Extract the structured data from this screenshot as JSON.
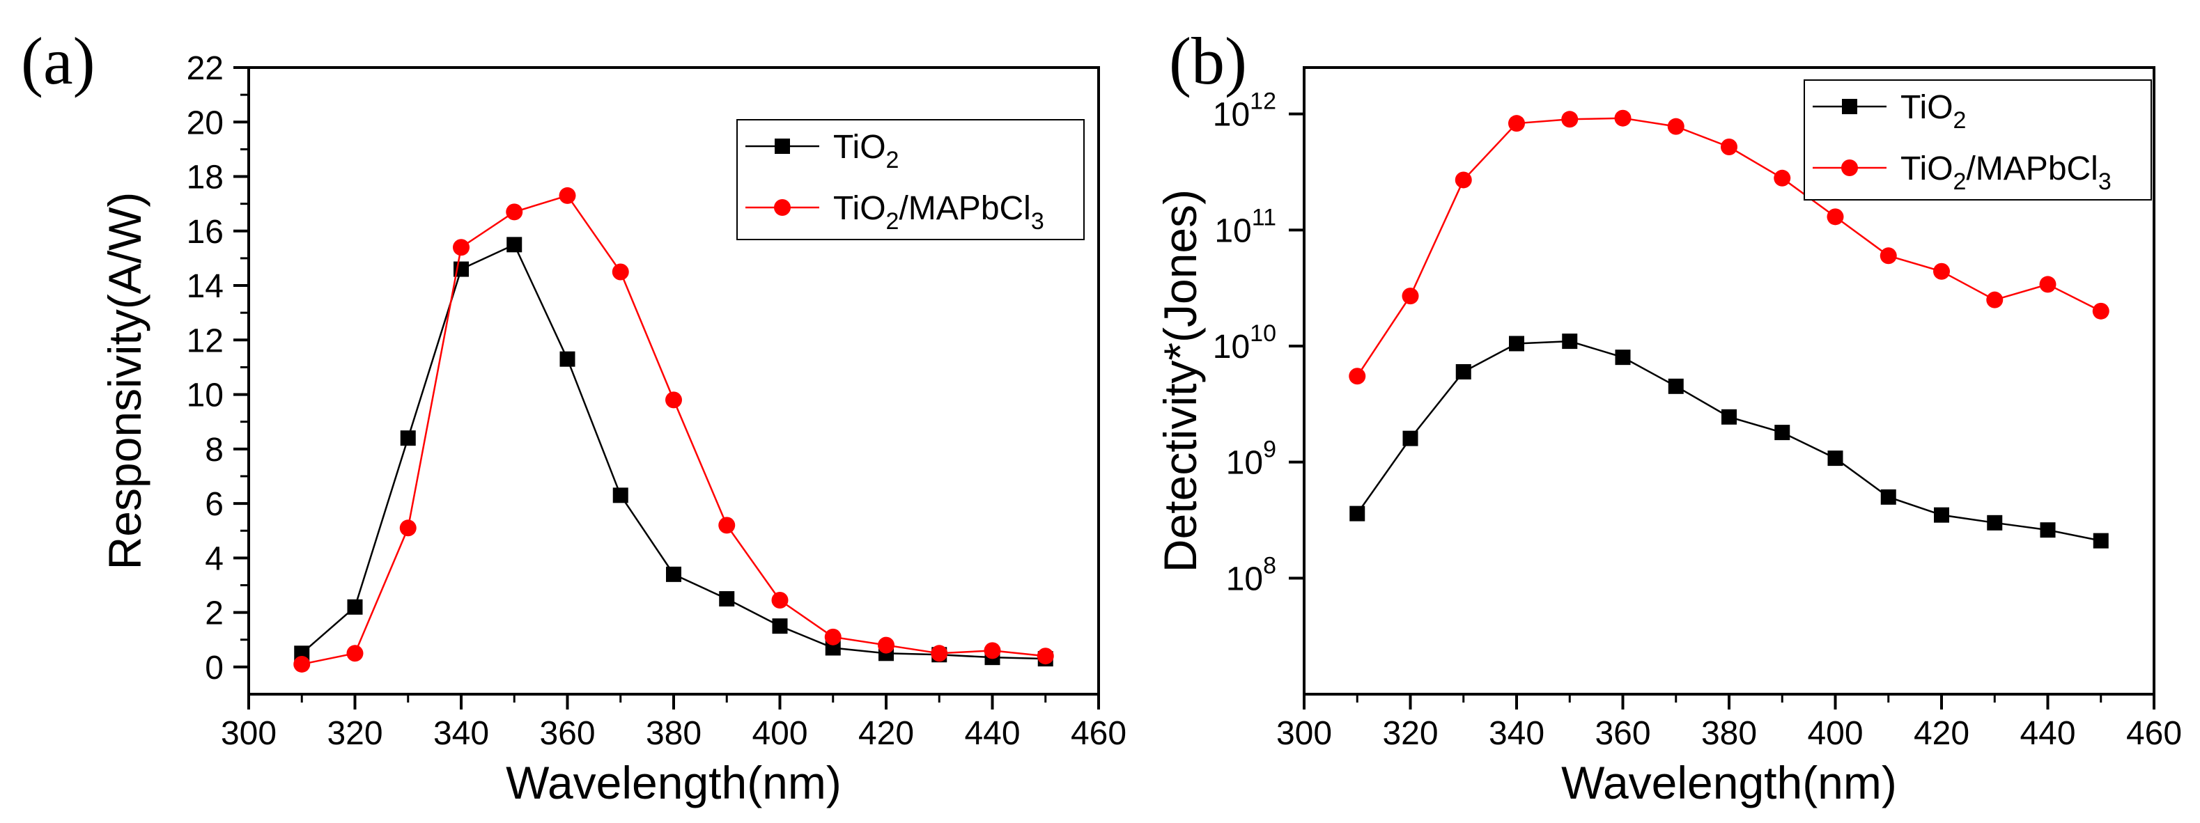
{
  "colors": {
    "tio2": "#000000",
    "mapbcl": "#ff0000",
    "axis": "#000000"
  },
  "chart_data": [
    {
      "type": "line",
      "panel": "(a)",
      "xlabel": "Wavelength(nm)",
      "ylabel": "Responsivity(A/W)",
      "xlim": [
        300,
        460
      ],
      "ylim": [
        -1,
        22
      ],
      "yscale": "linear",
      "xticks": [
        300,
        320,
        340,
        360,
        380,
        400,
        420,
        440,
        460
      ],
      "xtick_labels": [
        "300",
        "320",
        "340",
        "360",
        "380",
        "400",
        "420",
        "440",
        "460"
      ],
      "yticks": [
        0,
        2,
        4,
        6,
        8,
        10,
        12,
        14,
        16,
        18,
        20,
        22
      ],
      "ytick_labels": [
        "0",
        "2",
        "4",
        "6",
        "8",
        "10",
        "12",
        "14",
        "16",
        "18",
        "20",
        "22"
      ],
      "legend_position": "top-right",
      "x": [
        310,
        320,
        330,
        340,
        350,
        360,
        370,
        380,
        390,
        400,
        410,
        420,
        430,
        440,
        450
      ],
      "series": [
        {
          "name": "TiO2",
          "label_main": "TiO",
          "label_parts": [
            "2"
          ],
          "marker": "square",
          "color": "#000000",
          "values": [
            0.5,
            2.2,
            8.4,
            14.6,
            15.5,
            11.3,
            6.3,
            3.4,
            2.5,
            1.5,
            0.7,
            0.5,
            0.45,
            0.35,
            0.3
          ]
        },
        {
          "name": "TiO2/MAPbCl3",
          "label_main": "TiO",
          "label_parts": [
            "2",
            "/MAPbCl",
            "3"
          ],
          "marker": "circle",
          "color": "#ff0000",
          "values": [
            0.1,
            0.5,
            5.1,
            15.4,
            16.7,
            17.3,
            14.5,
            9.8,
            5.2,
            2.45,
            1.1,
            0.8,
            0.5,
            0.6,
            0.4
          ]
        }
      ]
    },
    {
      "type": "line",
      "panel": "(b)",
      "xlabel": "Wavelength(nm)",
      "ylabel": "Detectivity*(Jones)",
      "xlim": [
        300,
        460
      ],
      "ylim_exponent": [
        7,
        12.4
      ],
      "yscale": "log",
      "xticks": [
        300,
        320,
        340,
        360,
        380,
        400,
        420,
        440,
        460
      ],
      "xtick_labels": [
        "300",
        "320",
        "340",
        "360",
        "380",
        "400",
        "420",
        "440",
        "460"
      ],
      "yticks_exponent": [
        8,
        9,
        10,
        11,
        12
      ],
      "ytick_base": "10",
      "ytick_exp_labels": [
        "8",
        "9",
        "10",
        "11",
        "12"
      ],
      "legend_position": "top-right",
      "x": [
        310,
        320,
        330,
        340,
        350,
        360,
        370,
        380,
        390,
        400,
        410,
        420,
        430,
        440,
        450
      ],
      "series": [
        {
          "name": "TiO2",
          "label_main": "TiO",
          "label_parts": [
            "2"
          ],
          "marker": "square",
          "color": "#000000",
          "values": [
            360000000.0,
            1600000000.0,
            6000000000.0,
            10500000000.0,
            11000000000.0,
            8000000000.0,
            4500000000.0,
            2450000000.0,
            1800000000.0,
            1080000000.0,
            500000000.0,
            350000000.0,
            300000000.0,
            260000000.0,
            210000000.0
          ]
        },
        {
          "name": "TiO2/MAPbCl3",
          "label_main": "TiO",
          "label_parts": [
            "2",
            "/MAPbCl",
            "3"
          ],
          "marker": "circle",
          "color": "#ff0000",
          "values": [
            5500000000.0,
            27000000000.0,
            270000000000.0,
            830000000000.0,
            900000000000.0,
            920000000000.0,
            780000000000.0,
            520000000000.0,
            280000000000.0,
            130000000000.0,
            60000000000.0,
            44000000000.0,
            25000000000.0,
            34000000000.0,
            20000000000.0
          ]
        }
      ]
    }
  ]
}
